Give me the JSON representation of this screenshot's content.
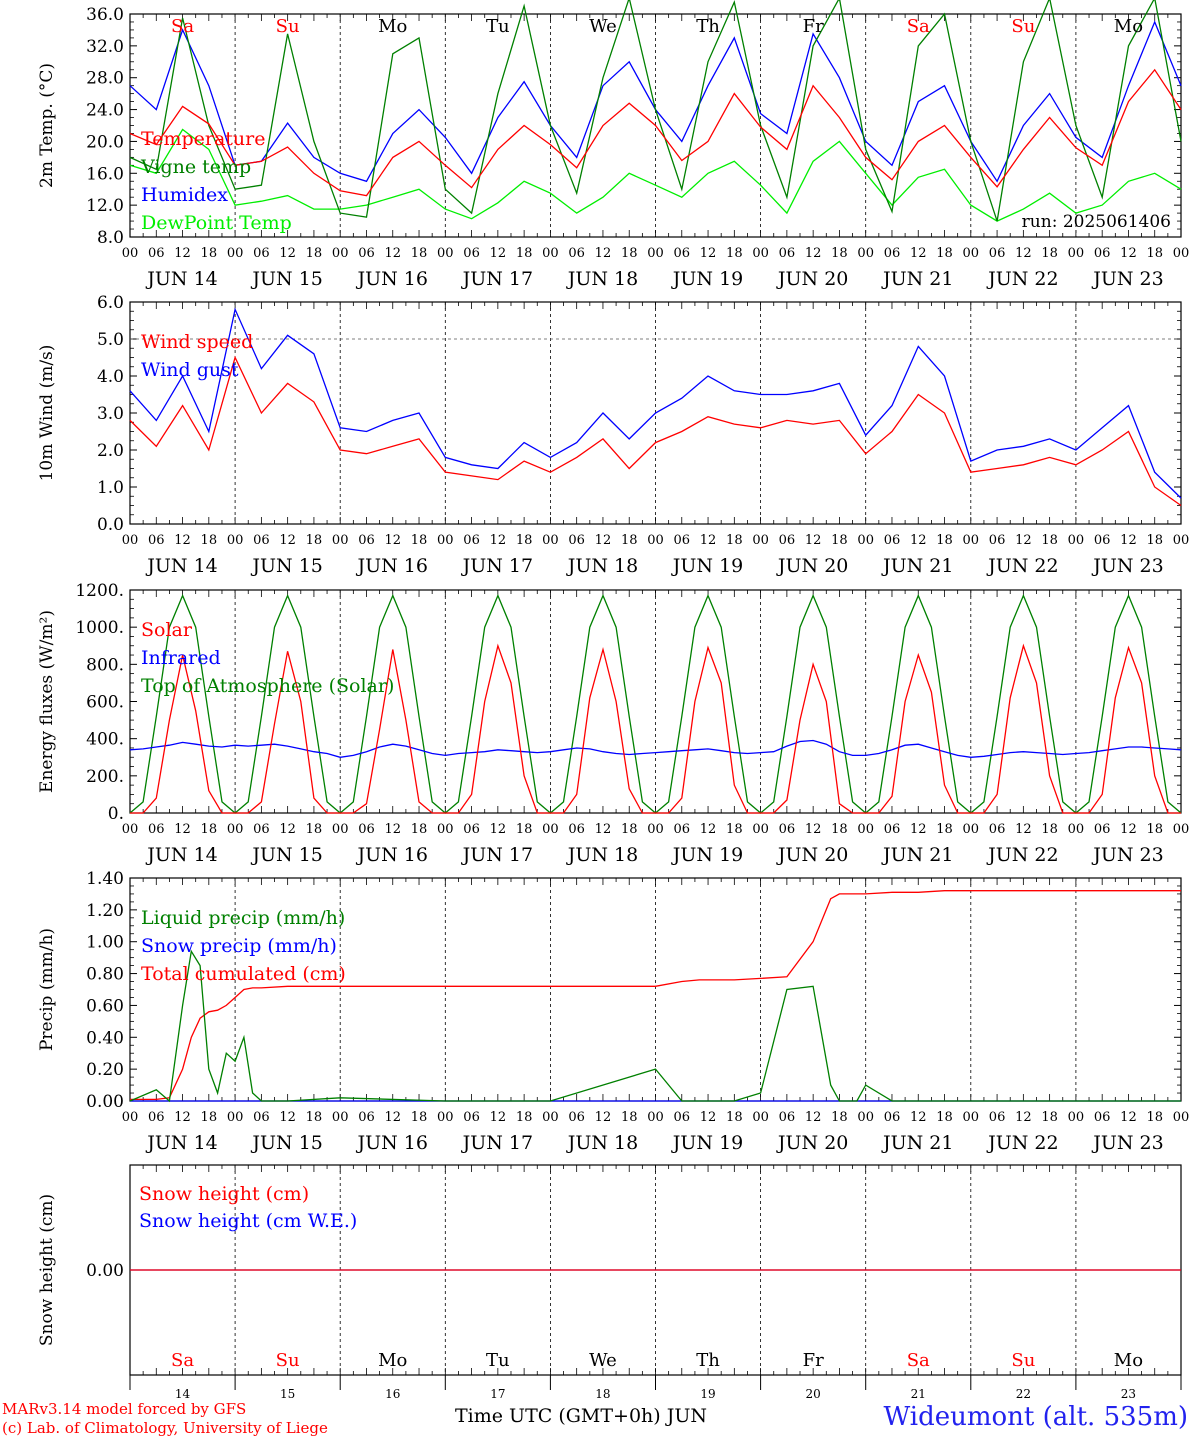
{
  "chart_data": [
    {
      "type": "line",
      "ylabel": "2m Temp. (°C)",
      "ylim": [
        8,
        36
      ],
      "yticks": [
        "8.0",
        "12.0",
        "16.0",
        "20.0",
        "24.0",
        "28.0",
        "32.0",
        "36.0"
      ],
      "annotation": "run: 2025061406",
      "x_hours": [
        0,
        6,
        12,
        18,
        24,
        30,
        36,
        42,
        48,
        54,
        60,
        66,
        72,
        78,
        84,
        90,
        96,
        102,
        108,
        114,
        120,
        126,
        132,
        138,
        144,
        150,
        156,
        162,
        168,
        174,
        180,
        186,
        192,
        198,
        204,
        210,
        216,
        222,
        228,
        234,
        240
      ],
      "series": [
        {
          "name": "Temperature",
          "color": "#ff0000",
          "values": [
            21.0,
            19.6,
            24.4,
            22.2,
            17.0,
            17.5,
            19.3,
            16.0,
            13.8,
            13.2,
            18.0,
            20.0,
            17.0,
            14.2,
            19.0,
            22.0,
            19.6,
            16.7,
            22.0,
            24.8,
            22.0,
            17.6,
            20.0,
            26.0,
            21.8,
            19.0,
            27.0,
            23.0,
            18.0,
            15.2,
            20.0,
            22.0,
            18.0,
            14.3,
            19.0,
            23.0,
            19.2,
            17.0,
            25.0,
            29.0,
            24.0
          ]
        },
        {
          "name": "Vigne temp",
          "color": "#008000",
          "values": [
            18.0,
            16.5,
            35.5,
            22.0,
            14.0,
            14.5,
            33.5,
            20.0,
            11.0,
            10.5,
            31.0,
            33.0,
            14.0,
            11.0,
            26.0,
            37.0,
            22.0,
            13.5,
            28.0,
            38.0,
            24.0,
            14.0,
            30.0,
            37.5,
            22.0,
            13.0,
            32.0,
            38.0,
            19.0,
            11.2,
            32.0,
            36.0,
            20.0,
            10.0,
            30.0,
            38.0,
            22.0,
            13.0,
            32.0,
            38.0,
            20.0
          ]
        },
        {
          "name": "Humidex",
          "color": "#0000ff",
          "values": [
            27.0,
            24.0,
            34.0,
            27.0,
            17.0,
            17.5,
            22.3,
            18.0,
            16.0,
            15.0,
            21.0,
            24.0,
            20.5,
            16.0,
            23.0,
            27.5,
            22.0,
            18.0,
            27.0,
            30.0,
            24.0,
            20.0,
            27.0,
            33.0,
            23.5,
            21.0,
            33.5,
            28.0,
            20.0,
            17.0,
            25.0,
            27.0,
            20.0,
            15.0,
            22.0,
            26.0,
            20.5,
            18.0,
            27.0,
            35.0,
            27.0
          ]
        },
        {
          "name": "DewPoint Temp",
          "color": "#00ee00",
          "values": [
            17.0,
            16.0,
            21.5,
            19.0,
            12.0,
            12.5,
            13.2,
            11.5,
            11.5,
            12.0,
            13.0,
            14.0,
            11.5,
            10.3,
            12.3,
            15.0,
            13.5,
            11.0,
            13.0,
            16.0,
            14.5,
            13.0,
            16.0,
            17.5,
            14.5,
            11.0,
            17.5,
            20.0,
            16.0,
            12.0,
            15.5,
            16.5,
            12.0,
            10.0,
            11.5,
            13.5,
            11.0,
            12.0,
            15.0,
            16.0,
            14.0
          ]
        }
      ]
    },
    {
      "type": "line",
      "ylabel": "10m Wind (m/s)",
      "ylim": [
        0,
        6
      ],
      "yticks": [
        "0.0",
        "1.0",
        "2.0",
        "3.0",
        "4.0",
        "5.0",
        "6.0"
      ],
      "reference_line": 5.0,
      "x_hours": [
        0,
        6,
        12,
        18,
        24,
        30,
        36,
        42,
        48,
        54,
        60,
        66,
        72,
        78,
        84,
        90,
        96,
        102,
        108,
        114,
        120,
        126,
        132,
        138,
        144,
        150,
        156,
        162,
        168,
        174,
        180,
        186,
        192,
        198,
        204,
        210,
        216,
        222,
        228,
        234,
        240
      ],
      "series": [
        {
          "name": "Wind speed",
          "color": "#ff0000",
          "values": [
            2.8,
            2.1,
            3.2,
            2.0,
            4.5,
            3.0,
            3.8,
            3.3,
            2.0,
            1.9,
            2.1,
            2.3,
            1.4,
            1.3,
            1.2,
            1.7,
            1.4,
            1.8,
            2.3,
            1.5,
            2.2,
            2.5,
            2.9,
            2.7,
            2.6,
            2.8,
            2.7,
            2.8,
            1.9,
            2.5,
            3.5,
            3.0,
            1.4,
            1.5,
            1.6,
            1.8,
            1.6,
            2.0,
            2.5,
            1.0,
            0.5
          ]
        },
        {
          "name": "Wind gust",
          "color": "#0000ff",
          "values": [
            3.6,
            2.8,
            4.0,
            2.5,
            5.8,
            4.2,
            5.1,
            4.6,
            2.6,
            2.5,
            2.8,
            3.0,
            1.8,
            1.6,
            1.5,
            2.2,
            1.8,
            2.2,
            3.0,
            2.3,
            3.0,
            3.4,
            4.0,
            3.6,
            3.5,
            3.5,
            3.6,
            3.8,
            2.4,
            3.2,
            4.8,
            4.0,
            1.7,
            2.0,
            2.1,
            2.3,
            2.0,
            2.6,
            3.2,
            1.4,
            0.7
          ]
        }
      ]
    },
    {
      "type": "line",
      "ylabel": "Energy fluxes (W/m²)",
      "ylim": [
        0,
        1200
      ],
      "yticks": [
        "0.",
        "200.",
        "400.",
        "600.",
        "800.",
        "1000.",
        "1200."
      ],
      "x_hours": [
        0,
        3,
        6,
        9,
        12,
        15,
        18,
        21,
        24,
        27,
        30,
        33,
        36,
        39,
        42,
        45,
        48,
        51,
        54,
        57,
        60,
        63,
        66,
        69,
        72,
        75,
        78,
        81,
        84,
        87,
        90,
        93,
        96,
        99,
        102,
        105,
        108,
        111,
        114,
        117,
        120,
        123,
        126,
        129,
        132,
        135,
        138,
        141,
        144,
        147,
        150,
        153,
        156,
        159,
        162,
        165,
        168,
        171,
        174,
        177,
        180,
        183,
        186,
        189,
        192,
        195,
        198,
        201,
        204,
        207,
        210,
        213,
        216,
        219,
        222,
        225,
        228,
        231,
        234,
        237,
        240
      ],
      "series": [
        {
          "name": "Solar",
          "color": "#ff0000",
          "values": [
            0,
            0,
            80,
            500,
            850,
            550,
            120,
            0,
            0,
            0,
            60,
            480,
            870,
            600,
            80,
            0,
            0,
            0,
            50,
            450,
            880,
            500,
            60,
            0,
            0,
            0,
            100,
            600,
            900,
            700,
            200,
            0,
            0,
            0,
            100,
            620,
            880,
            600,
            130,
            0,
            0,
            0,
            80,
            600,
            890,
            700,
            150,
            0,
            0,
            0,
            70,
            500,
            800,
            600,
            50,
            0,
            0,
            0,
            90,
            600,
            850,
            650,
            150,
            0,
            0,
            0,
            100,
            620,
            900,
            700,
            200,
            0,
            0,
            0,
            100,
            620,
            890,
            700,
            200,
            0,
            0
          ]
        },
        {
          "name": "Infrared",
          "color": "#0000ff",
          "values": [
            340,
            345,
            355,
            365,
            380,
            370,
            360,
            355,
            365,
            360,
            365,
            370,
            360,
            345,
            330,
            320,
            300,
            310,
            330,
            355,
            370,
            360,
            340,
            320,
            310,
            320,
            325,
            330,
            340,
            335,
            330,
            325,
            330,
            340,
            350,
            345,
            330,
            320,
            315,
            320,
            325,
            330,
            335,
            340,
            345,
            335,
            325,
            320,
            325,
            330,
            360,
            385,
            390,
            370,
            330,
            310,
            310,
            320,
            340,
            365,
            370,
            350,
            330,
            310,
            300,
            305,
            315,
            325,
            330,
            325,
            320,
            315,
            320,
            325,
            335,
            345,
            355,
            355,
            350,
            345,
            340
          ]
        },
        {
          "name": "Top of Atmosphere (Solar)",
          "color": "#008000",
          "values": [
            0,
            60,
            520,
            1000,
            1170,
            1000,
            520,
            60,
            0,
            60,
            520,
            1000,
            1170,
            1000,
            520,
            60,
            0,
            60,
            520,
            1000,
            1170,
            1000,
            520,
            60,
            0,
            60,
            520,
            1000,
            1170,
            1000,
            520,
            60,
            0,
            60,
            520,
            1000,
            1170,
            1000,
            520,
            60,
            0,
            60,
            520,
            1000,
            1170,
            1000,
            520,
            60,
            0,
            60,
            520,
            1000,
            1170,
            1000,
            520,
            60,
            0,
            60,
            520,
            1000,
            1170,
            1000,
            520,
            60,
            0,
            60,
            520,
            1000,
            1170,
            1000,
            520,
            60,
            0,
            60,
            520,
            1000,
            1170,
            1000,
            520,
            60,
            0
          ]
        }
      ]
    },
    {
      "type": "line",
      "ylabel": "Precip (mm/h)",
      "ylim": [
        0,
        1.4
      ],
      "yticks": [
        "0.00",
        "0.20",
        "0.40",
        "0.60",
        "0.80",
        "1.00",
        "1.20",
        "1.40"
      ],
      "x_hours": [
        0,
        6,
        9,
        12,
        14,
        16,
        18,
        20,
        22,
        24,
        26,
        28,
        30,
        36,
        48,
        72,
        96,
        120,
        126,
        130,
        132,
        138,
        144,
        150,
        156,
        160,
        162,
        166,
        168,
        174,
        180,
        186,
        192,
        204,
        216,
        228,
        240
      ],
      "series": [
        {
          "name": "Liquid precip (mm/h)",
          "color": "#008000",
          "values": [
            0,
            0.07,
            0,
            0.6,
            0.94,
            0.85,
            0.2,
            0.05,
            0.3,
            0.25,
            0.4,
            0.05,
            0,
            0,
            0.02,
            0,
            0,
            0.2,
            0,
            0,
            0,
            0,
            0.05,
            0.7,
            0.72,
            0.1,
            0,
            0,
            0.1,
            0,
            0,
            0,
            0,
            0,
            0,
            0,
            0
          ]
        },
        {
          "name": "Snow precip (mm/h)",
          "color": "#0000ff",
          "values": [
            0,
            0,
            0,
            0,
            0,
            0,
            0,
            0,
            0,
            0,
            0,
            0,
            0,
            0,
            0,
            0,
            0,
            0,
            0,
            0,
            0,
            0,
            0,
            0,
            0,
            0,
            0,
            0,
            0,
            0,
            0,
            0,
            0,
            0,
            0,
            0,
            0
          ]
        },
        {
          "name": "Total cumulated (cm)",
          "color": "#ff0000",
          "values": [
            0.01,
            0.01,
            0.02,
            0.2,
            0.4,
            0.52,
            0.56,
            0.57,
            0.6,
            0.65,
            0.7,
            0.71,
            0.71,
            0.72,
            0.72,
            0.72,
            0.72,
            0.72,
            0.75,
            0.76,
            0.76,
            0.76,
            0.77,
            0.78,
            1.0,
            1.27,
            1.3,
            1.3,
            1.3,
            1.31,
            1.31,
            1.32,
            1.32,
            1.32,
            1.32,
            1.32,
            1.32
          ]
        }
      ]
    },
    {
      "type": "line",
      "ylabel": "Snow height (cm)",
      "yticks": [
        "0.00"
      ],
      "x_hours": [
        0,
        240
      ],
      "series": [
        {
          "name": "Snow height (cm)",
          "color": "#ff0000",
          "values": [
            0,
            0
          ]
        },
        {
          "name": "Snow height (cm W.E.)",
          "color": "#0000ff",
          "values": [
            0,
            0
          ]
        }
      ]
    }
  ],
  "x_axis": {
    "hour_ticks": [
      "00",
      "06",
      "12",
      "18"
    ],
    "days": [
      "JUN 14",
      "JUN 15",
      "JUN 16",
      "JUN 17",
      "JUN 18",
      "JUN 19",
      "JUN 20",
      "JUN 21",
      "JUN 22",
      "JUN 23"
    ],
    "day_numbers": [
      "14",
      "15",
      "16",
      "17",
      "18",
      "19",
      "20",
      "21",
      "22",
      "23"
    ],
    "weekdays": [
      {
        "label": "Sa",
        "color": "#ff0000"
      },
      {
        "label": "Su",
        "color": "#ff0000"
      },
      {
        "label": "Mo",
        "color": "#000000"
      },
      {
        "label": "Tu",
        "color": "#000000"
      },
      {
        "label": "We",
        "color": "#000000"
      },
      {
        "label": "Th",
        "color": "#000000"
      },
      {
        "label": "Fr",
        "color": "#000000"
      },
      {
        "label": "Sa",
        "color": "#ff0000"
      },
      {
        "label": "Su",
        "color": "#ff0000"
      },
      {
        "label": "Mo",
        "color": "#000000"
      }
    ],
    "title": "Time UTC (GMT+0h)",
    "month": "JUN"
  },
  "footer": {
    "model_line": "MARv3.14 model forced by GFS",
    "copyright_line": "(c) Lab. of Climatology, University of Liege",
    "station": "Wideumont (alt. 535m)"
  }
}
